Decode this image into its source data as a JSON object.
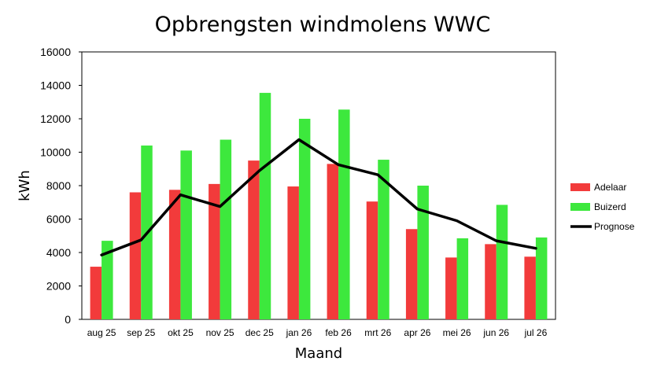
{
  "chart_data": {
    "type": "bar",
    "title": "Opbrengsten windmolens WWC",
    "xlabel": "Maand",
    "ylabel": "kWh",
    "ylim": [
      0,
      16000
    ],
    "yticks": [
      0,
      2000,
      4000,
      6000,
      8000,
      10000,
      12000,
      14000,
      16000
    ],
    "grid": false,
    "legend_position": "right",
    "categories": [
      "aug 25",
      "sep 25",
      "okt 25",
      "nov 25",
      "dec 25",
      "jan 26",
      "feb 26",
      "mrt 26",
      "apr 26",
      "mei 26",
      "jun 26",
      "jul 26"
    ],
    "series": [
      {
        "name": "Adelaar",
        "kind": "bar",
        "color": "#f23b3b",
        "values": [
          3150,
          7600,
          7750,
          8100,
          9500,
          7950,
          9300,
          7050,
          5400,
          3700,
          4500,
          3750
        ]
      },
      {
        "name": "Buizerd",
        "kind": "bar",
        "color": "#3de83d",
        "values": [
          4700,
          10400,
          10100,
          10750,
          13550,
          12000,
          12550,
          9550,
          8000,
          4850,
          6850,
          4900
        ]
      },
      {
        "name": "Prognose",
        "kind": "line",
        "color": "#000000",
        "values": [
          3850,
          4750,
          7450,
          6750,
          8900,
          10750,
          9250,
          8650,
          6600,
          5900,
          4700,
          4250
        ]
      }
    ]
  }
}
